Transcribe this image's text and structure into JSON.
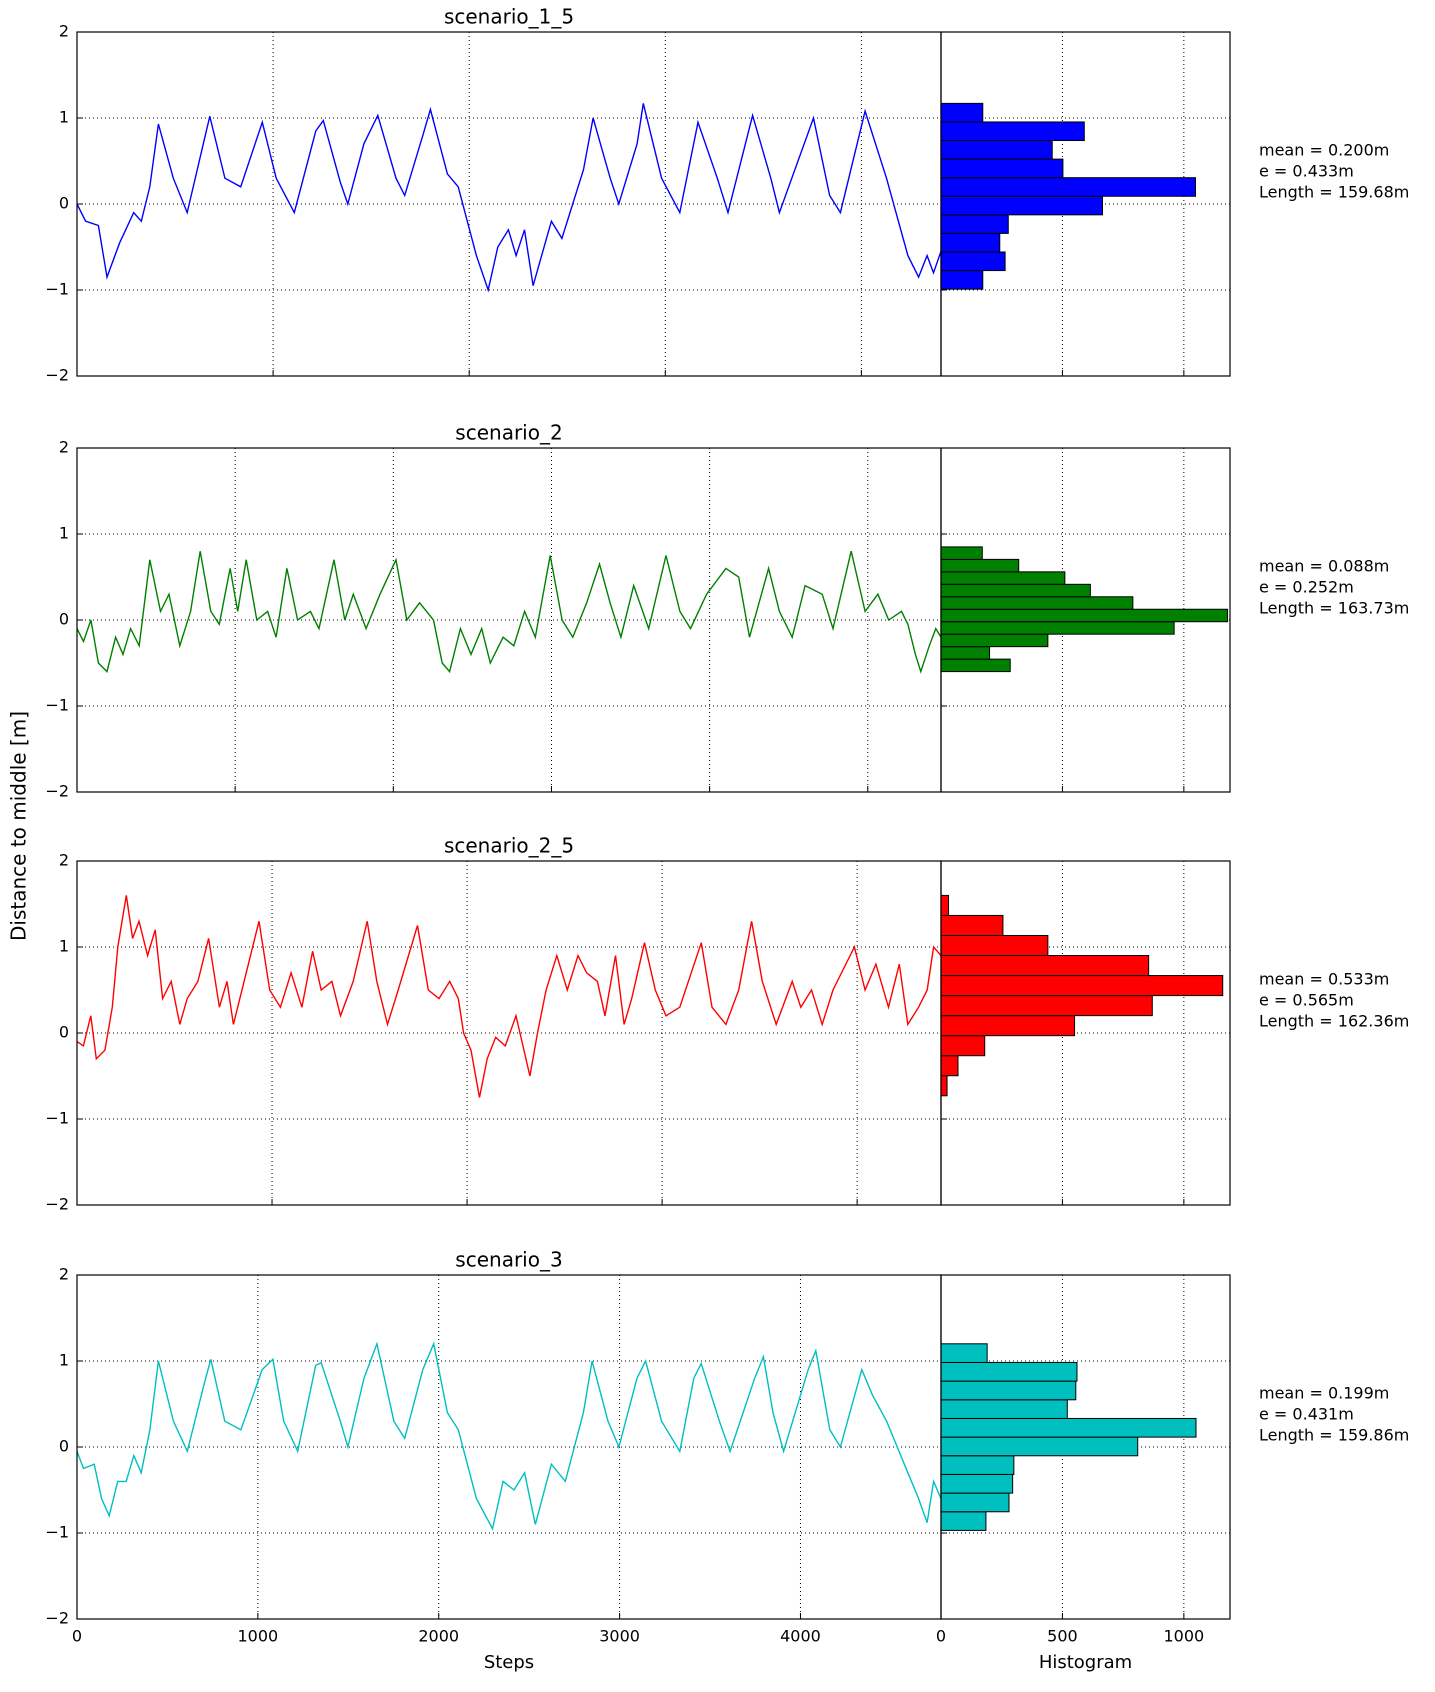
{
  "chart_data": [
    {
      "type": "line",
      "title": "scenario_1_5",
      "ylabel": "Distance to middle [m]",
      "x": [
        0,
        44,
        109,
        153,
        218,
        289,
        328,
        371,
        415,
        491,
        562,
        644,
        677,
        754,
        835,
        945,
        1016,
        1108,
        1218,
        1256,
        1343,
        1381,
        1463,
        1534,
        1627,
        1671,
        1764,
        1802,
        1889,
        1944,
        2037,
        2097,
        2146,
        2200,
        2239,
        2282,
        2326,
        2419,
        2473,
        2583,
        2632,
        2719,
        2763,
        2856,
        2888,
        2981,
        3074,
        3167,
        3265,
        3320,
        3445,
        3538,
        3582,
        3756,
        3838,
        3893,
        4019,
        4128,
        4237,
        4292,
        4335,
        4368,
        4406
      ],
      "series": [
        {
          "color": "#0000ff",
          "values": [
            0,
            -0.2,
            -0.25,
            -0.85,
            -0.45,
            -0.1,
            -0.2,
            0.2,
            0.93,
            0.3,
            -0.1,
            0.7,
            1.02,
            0.3,
            0.2,
            0.95,
            0.3,
            -0.1,
            0.85,
            0.97,
            0.25,
            0,
            0.7,
            1.03,
            0.3,
            0.1,
            0.8,
            1.1,
            0.35,
            0.2,
            -0.6,
            -1.0,
            -0.5,
            -0.3,
            -0.6,
            -0.3,
            -0.95,
            -0.2,
            -0.4,
            0.4,
            1.0,
            0.3,
            0,
            0.7,
            1.17,
            0.3,
            -0.1,
            0.95,
            0.3,
            -0.1,
            1.03,
            0.3,
            -0.1,
            1.0,
            0.1,
            -0.1,
            1.08,
            0.3,
            -0.6,
            -0.85,
            -0.6,
            -0.8,
            -0.55
          ]
        }
      ],
      "xlim": [
        0,
        4406
      ],
      "xticks": [
        0,
        1000,
        2000,
        3000,
        4000
      ],
      "show_xtick_labels": false,
      "ylim": [
        -2,
        2
      ],
      "yticks": [
        {
          "value": -2,
          "label": "−2"
        },
        {
          "value": -1,
          "label": "−1"
        },
        0,
        1,
        2
      ],
      "grid": true
    },
    {
      "type": "histogram",
      "orientation": "horizontal",
      "color": "#0000ff",
      "bins": [
        -0.99,
        -0.774,
        -0.558,
        -0.342,
        -0.126,
        0.09,
        0.306,
        0.522,
        0.738,
        0.954,
        1.17
      ],
      "values": [
        172,
        264,
        242,
        277,
        665,
        1048,
        502,
        458,
        590,
        172
      ],
      "xlim": [
        0,
        1190
      ],
      "xticks": [
        0,
        500,
        1000
      ],
      "show_xtick_labels": false,
      "ylim": [
        -2,
        2
      ],
      "yticks": [
        -2,
        -1,
        0,
        1,
        2
      ],
      "show_ytick_labels": false,
      "grid": true,
      "annotations": [
        "mean = 0.200m",
        "e = 0.433m",
        "Length = 159.68m"
      ]
    },
    {
      "type": "line",
      "title": "scenario_2",
      "x": [
        0,
        41,
        88,
        135,
        190,
        244,
        291,
        339,
        393,
        460,
        528,
        582,
        650,
        718,
        779,
        846,
        900,
        968,
        1016,
        1070,
        1137,
        1205,
        1259,
        1327,
        1395,
        1476,
        1530,
        1625,
        1693,
        1747,
        1828,
        1916,
        2017,
        2085,
        2166,
        2254,
        2309,
        2356,
        2424,
        2491,
        2559,
        2613,
        2694,
        2762,
        2830,
        2898,
        2992,
        3067,
        3135,
        3223,
        3304,
        3371,
        3439,
        3520,
        3615,
        3724,
        3812,
        3879,
        3981,
        4103,
        4184,
        4252,
        4373,
        4441,
        4522,
        4604,
        4712,
        4780,
        4895,
        4983,
        5064,
        5132,
        5213,
        5254,
        5301,
        5335,
        5389,
        5430,
        5463
      ],
      "series": [
        {
          "color": "#008000",
          "values": [
            -0.1,
            -0.25,
            0,
            -0.5,
            -0.6,
            -0.2,
            -0.4,
            -0.1,
            -0.3,
            0.7,
            0.1,
            0.3,
            -0.3,
            0.1,
            0.8,
            0.1,
            -0.05,
            0.6,
            0.1,
            0.7,
            0,
            0.1,
            -0.2,
            0.6,
            0,
            0.1,
            -0.1,
            0.7,
            0,
            0.3,
            -0.1,
            0.3,
            0.7,
            0,
            0.2,
            0,
            -0.5,
            -0.6,
            -0.1,
            -0.4,
            -0.1,
            -0.5,
            -0.2,
            -0.3,
            0.1,
            -0.2,
            0.75,
            0,
            -0.2,
            0.2,
            0.65,
            0.2,
            -0.2,
            0.4,
            -0.1,
            0.75,
            0.1,
            -0.1,
            0.3,
            0.6,
            0.5,
            -0.2,
            0.6,
            0.1,
            -0.2,
            0.4,
            0.3,
            -0.1,
            0.8,
            0.1,
            0.3,
            0,
            0.1,
            -0.05,
            -0.4,
            -0.6,
            -0.3,
            -0.1,
            -0.2
          ]
        }
      ],
      "xlim": [
        0,
        5463
      ],
      "xticks": [
        0,
        1000,
        2000,
        3000,
        4000,
        5000
      ],
      "show_xtick_labels": false,
      "ylim": [
        -2,
        2
      ],
      "yticks": [
        {
          "value": -2,
          "label": "−2"
        },
        {
          "value": -1,
          "label": "−1"
        },
        0,
        1,
        2
      ],
      "grid": true
    },
    {
      "type": "histogram",
      "orientation": "horizontal",
      "color": "#008000",
      "bins": [
        -0.6,
        -0.455,
        -0.31,
        -0.165,
        -0.02,
        0.125,
        0.27,
        0.415,
        0.56,
        0.705,
        0.85
      ],
      "values": [
        285,
        200,
        440,
        960,
        1180,
        790,
        615,
        510,
        320,
        170
      ],
      "xlim": [
        0,
        1190
      ],
      "xticks": [
        0,
        500,
        1000
      ],
      "show_xtick_labels": false,
      "ylim": [
        -2,
        2
      ],
      "yticks": [
        -2,
        -1,
        0,
        1,
        2
      ],
      "show_ytick_labels": false,
      "grid": true,
      "annotations": [
        "mean = 0.088m",
        "e = 0.252m",
        "Length = 163.73m"
      ]
    },
    {
      "type": "line",
      "title": "scenario_2_5",
      "x": [
        0,
        33,
        71,
        99,
        143,
        181,
        209,
        253,
        285,
        318,
        362,
        401,
        439,
        483,
        527,
        565,
        620,
        675,
        730,
        769,
        802,
        857,
        933,
        988,
        1043,
        1098,
        1153,
        1208,
        1252,
        1307,
        1351,
        1416,
        1488,
        1537,
        1592,
        1647,
        1746,
        1801,
        1856,
        1911,
        1955,
        1982,
        2020,
        2064,
        2103,
        2147,
        2196,
        2251,
        2322,
        2361,
        2405,
        2460,
        2514,
        2569,
        2613,
        2668,
        2707,
        2761,
        2805,
        2844,
        2910,
        2965,
        3020,
        3091,
        3201,
        3256,
        3327,
        3393,
        3459,
        3514,
        3585,
        3667,
        3711,
        3766,
        3821,
        3876,
        3986,
        4041,
        4096,
        4161,
        4216,
        4260,
        4315,
        4359,
        4392,
        4430
      ],
      "series": [
        {
          "color": "#ff0000",
          "values": [
            -0.1,
            -0.15,
            0.2,
            -0.3,
            -0.2,
            0.3,
            1.0,
            1.6,
            1.1,
            1.3,
            0.9,
            1.2,
            0.4,
            0.6,
            0.1,
            0.4,
            0.6,
            1.1,
            0.3,
            0.6,
            0.1,
            0.6,
            1.3,
            0.5,
            0.3,
            0.7,
            0.3,
            0.95,
            0.5,
            0.6,
            0.2,
            0.6,
            1.3,
            0.6,
            0.1,
            0.5,
            1.25,
            0.5,
            0.4,
            0.6,
            0.4,
            0,
            -0.2,
            -0.75,
            -0.3,
            -0.05,
            -0.15,
            0.2,
            -0.5,
            0,
            0.5,
            0.9,
            0.5,
            0.9,
            0.7,
            0.6,
            0.2,
            0.9,
            0.1,
            0.4,
            1.05,
            0.5,
            0.2,
            0.3,
            1.05,
            0.3,
            0.1,
            0.5,
            1.3,
            0.6,
            0.1,
            0.6,
            0.3,
            0.5,
            0.1,
            0.5,
            1.0,
            0.5,
            0.8,
            0.3,
            0.8,
            0.1,
            0.3,
            0.5,
            1.0,
            0.9
          ]
        }
      ],
      "xlim": [
        0,
        4430
      ],
      "xticks": [
        0,
        1000,
        2000,
        3000,
        4000
      ],
      "show_xtick_labels": false,
      "ylim": [
        -2,
        2
      ],
      "yticks": [
        {
          "value": -2,
          "label": "−2"
        },
        {
          "value": -1,
          "label": "−1"
        },
        0,
        1,
        2
      ],
      "grid": true
    },
    {
      "type": "histogram",
      "orientation": "horizontal",
      "color": "#ff0000",
      "bins": [
        -0.73,
        -0.497,
        -0.264,
        -0.031,
        0.202,
        0.435,
        0.668,
        0.901,
        1.134,
        1.367,
        1.6
      ],
      "values": [
        25,
        70,
        180,
        550,
        870,
        1160,
        855,
        440,
        255,
        31
      ],
      "xlim": [
        0,
        1190
      ],
      "xticks": [
        0,
        500,
        1000
      ],
      "show_xtick_labels": false,
      "ylim": [
        -2,
        2
      ],
      "yticks": [
        -2,
        -1,
        0,
        1,
        2
      ],
      "show_ytick_labels": false,
      "grid": true,
      "annotations": [
        "mean = 0.533m",
        "e = 0.565m",
        "Length = 162.36m"
      ]
    },
    {
      "type": "line",
      "title": "scenario_3",
      "xlabel": "Steps",
      "x": [
        0,
        36,
        95,
        136,
        178,
        225,
        272,
        314,
        355,
        403,
        450,
        533,
        610,
        699,
        740,
        817,
        906,
        1024,
        1083,
        1143,
        1220,
        1320,
        1350,
        1456,
        1498,
        1587,
        1658,
        1752,
        1812,
        1912,
        1972,
        2048,
        2108,
        2208,
        2297,
        2356,
        2416,
        2475,
        2534,
        2623,
        2700,
        2800,
        2848,
        2936,
        2996,
        3096,
        3144,
        3232,
        3333,
        3410,
        3451,
        3552,
        3611,
        3747,
        3795,
        3848,
        3907,
        4043,
        4085,
        4162,
        4221,
        4339,
        4399,
        4476,
        4594,
        4653,
        4700,
        4736,
        4777
      ],
      "series": [
        {
          "color": "#00bfbf",
          "values": [
            -0.05,
            -0.25,
            -0.2,
            -0.6,
            -0.8,
            -0.4,
            -0.4,
            -0.1,
            -0.3,
            0.2,
            1.0,
            0.3,
            -0.05,
            0.7,
            1.02,
            0.3,
            0.2,
            0.9,
            1.02,
            0.3,
            -0.05,
            0.95,
            0.98,
            0.3,
            0,
            0.8,
            1.2,
            0.3,
            0.1,
            0.9,
            1.2,
            0.4,
            0.2,
            -0.6,
            -0.95,
            -0.4,
            -0.5,
            -0.3,
            -0.9,
            -0.2,
            -0.4,
            0.4,
            1.0,
            0.3,
            0,
            0.8,
            1.0,
            0.3,
            -0.05,
            0.8,
            0.97,
            0.3,
            -0.05,
            0.8,
            1.05,
            0.4,
            -0.05,
            0.9,
            1.12,
            0.2,
            0,
            0.9,
            0.6,
            0.3,
            -0.3,
            -0.6,
            -0.88,
            -0.4,
            -0.6
          ]
        }
      ],
      "xlim": [
        0,
        4777
      ],
      "xticks": [
        0,
        1000,
        2000,
        3000,
        4000
      ],
      "show_xtick_labels": true,
      "ylim": [
        -2,
        2
      ],
      "yticks": [
        {
          "value": -2,
          "label": "−2"
        },
        {
          "value": -1,
          "label": "−1"
        },
        0,
        1,
        2
      ],
      "grid": true
    },
    {
      "type": "histogram",
      "orientation": "horizontal",
      "color": "#00bfbf",
      "xlabel": "Histogram",
      "bins": [
        -0.97,
        -0.753,
        -0.536,
        -0.319,
        -0.102,
        0.115,
        0.332,
        0.549,
        0.766,
        0.983,
        1.2
      ],
      "values": [
        185,
        280,
        295,
        300,
        810,
        1050,
        520,
        555,
        560,
        190
      ],
      "xlim": [
        0,
        1190
      ],
      "xticks": [
        0,
        500,
        1000
      ],
      "show_xtick_labels": true,
      "ylim": [
        -2,
        2
      ],
      "yticks": [
        -2,
        -1,
        0,
        1,
        2
      ],
      "show_ytick_labels": false,
      "grid": true,
      "annotations": [
        "mean = 0.199m",
        "e = 0.431m",
        "Length = 159.86m"
      ]
    }
  ]
}
